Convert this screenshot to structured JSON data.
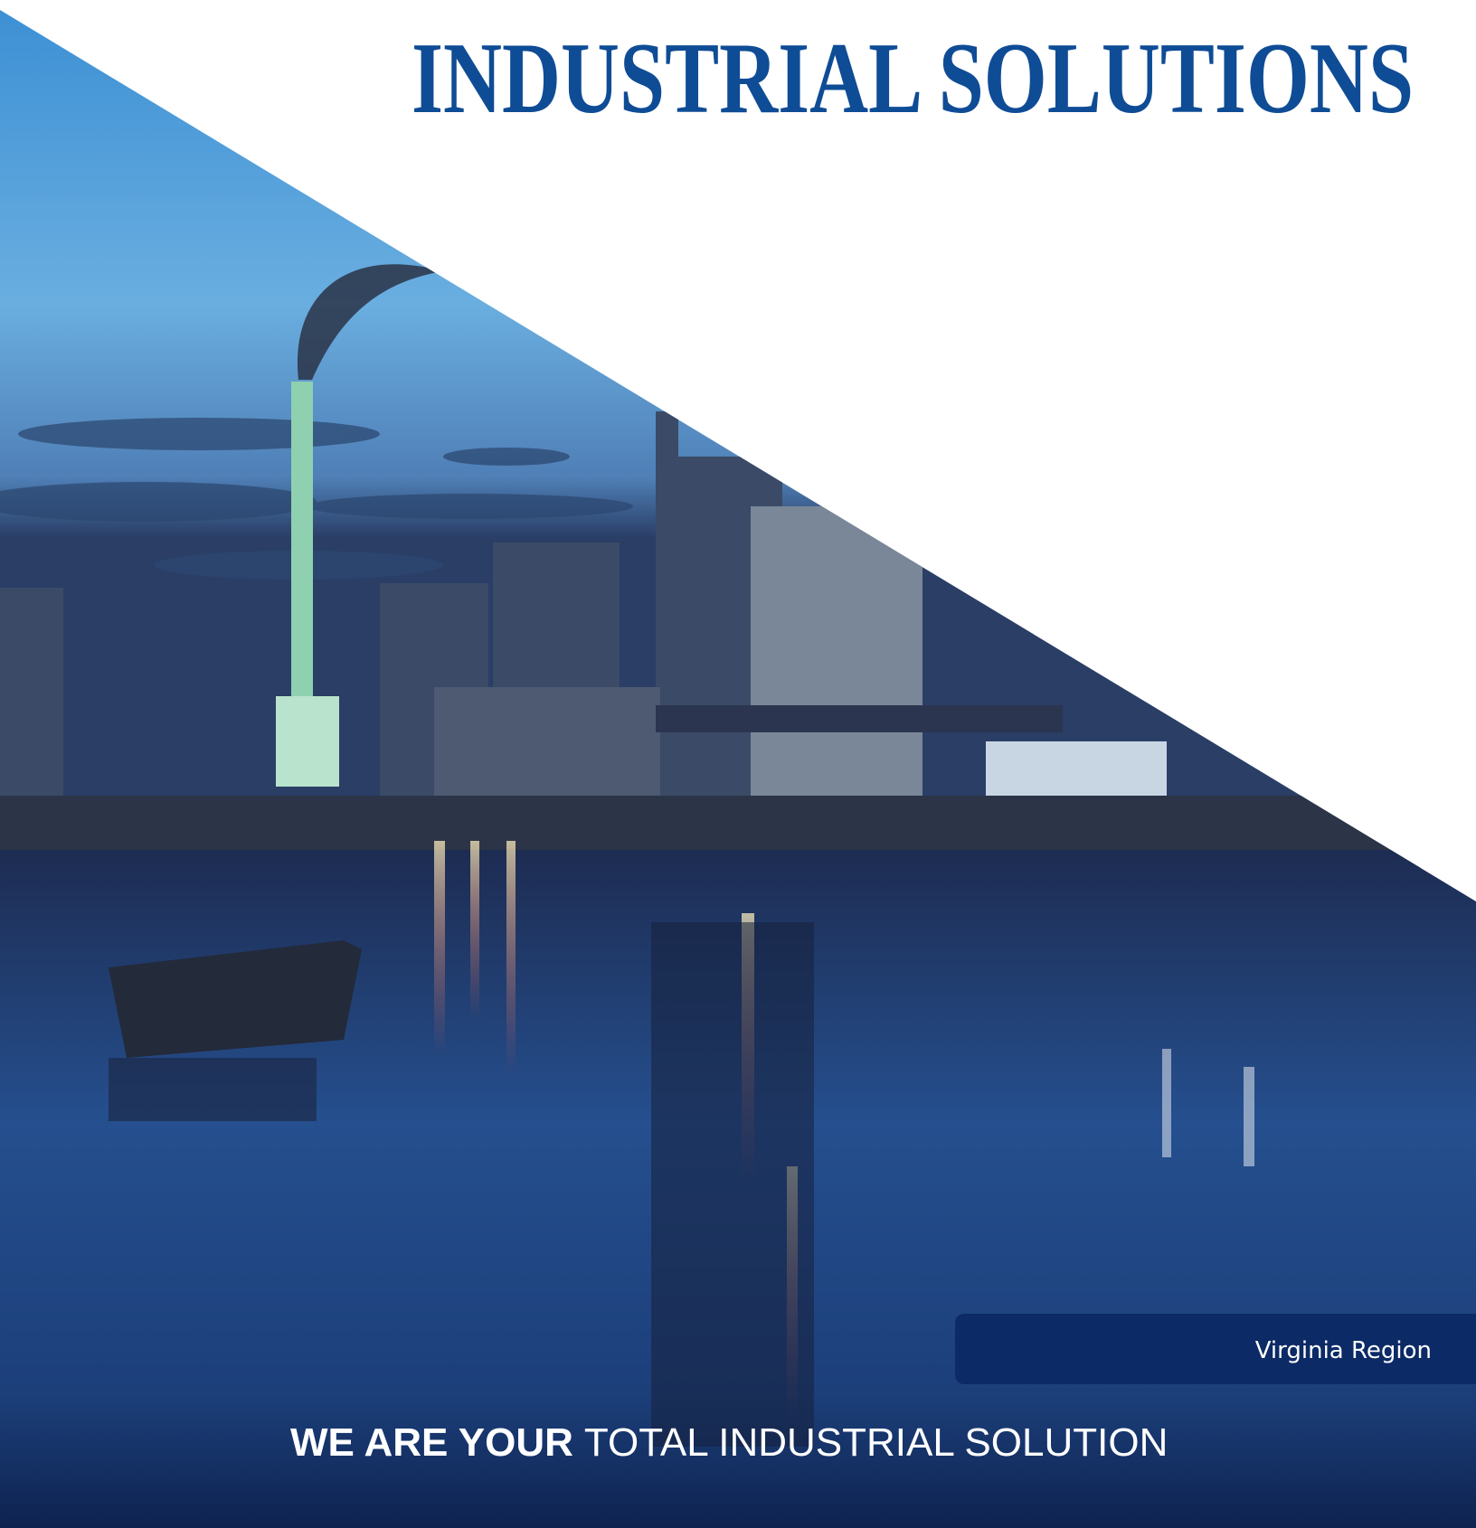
{
  "header": {
    "title": "INDUSTRIAL SOLUTIONS"
  },
  "badge": {
    "text": "Virginia Region"
  },
  "tagline": {
    "bold": "WE ARE YOUR",
    "regular": "TOTAL INDUSTRIAL SOLUTION"
  }
}
